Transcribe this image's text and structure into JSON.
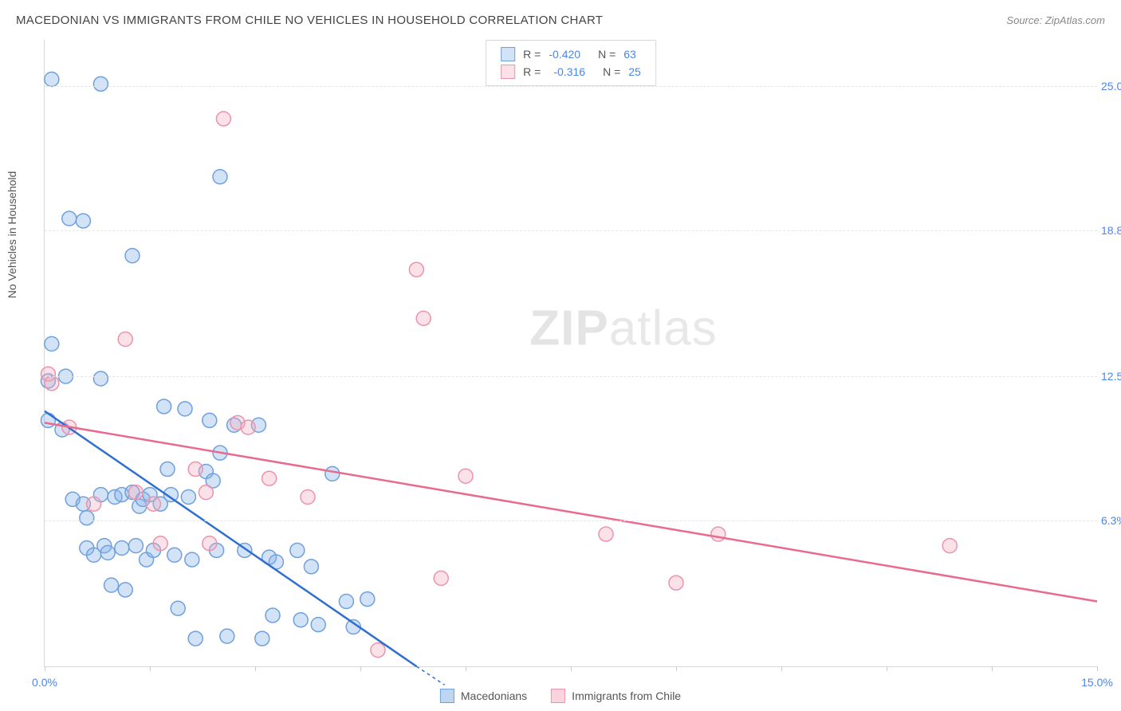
{
  "header": {
    "title": "MACEDONIAN VS IMMIGRANTS FROM CHILE NO VEHICLES IN HOUSEHOLD CORRELATION CHART",
    "source_label": "Source:",
    "source_name": "ZipAtlas.com"
  },
  "chart": {
    "type": "scatter",
    "y_axis_label": "No Vehicles in Household",
    "xlim": [
      0,
      15
    ],
    "ylim": [
      0,
      27
    ],
    "x_ticks": [
      0,
      1.5,
      3.0,
      4.5,
      6.0,
      7.5,
      9.0,
      10.5,
      12.0,
      13.5,
      15.0
    ],
    "x_tick_labels_shown": {
      "0": "0.0%",
      "15": "15.0%"
    },
    "y_ticks": [
      6.3,
      12.5,
      18.8,
      25.0
    ],
    "y_tick_labels": [
      "6.3%",
      "12.5%",
      "18.8%",
      "25.0%"
    ],
    "background_color": "#ffffff",
    "grid_color": "#e6e6e6",
    "axis_color": "#d8d8d8",
    "watermark": {
      "text_bold": "ZIP",
      "text_light": "atlas",
      "color": "#e8e8e8"
    },
    "marker_radius": 9,
    "marker_stroke_width": 1.5,
    "trend_line_width": 2.5,
    "series": [
      {
        "name": "Macedonians",
        "color_fill": "rgba(128,174,232,0.35)",
        "color_stroke": "#6fa0dd",
        "line_color": "#2e6fd0",
        "R": "-0.420",
        "N": "63",
        "trend": {
          "x1": 0,
          "y1": 11.0,
          "x2": 5.3,
          "y2": 0
        },
        "trend_dash_ext": {
          "x1": 5.3,
          "y1": 0,
          "x2": 5.7,
          "y2": -0.8
        },
        "points": [
          [
            0.05,
            12.3
          ],
          [
            0.05,
            10.6
          ],
          [
            0.1,
            25.3
          ],
          [
            0.1,
            13.9
          ],
          [
            0.25,
            10.2
          ],
          [
            0.3,
            12.5
          ],
          [
            0.35,
            19.3
          ],
          [
            0.4,
            7.2
          ],
          [
            0.55,
            19.2
          ],
          [
            0.55,
            7.0
          ],
          [
            0.6,
            6.4
          ],
          [
            0.6,
            5.1
          ],
          [
            0.7,
            4.8
          ],
          [
            0.8,
            25.1
          ],
          [
            0.8,
            12.4
          ],
          [
            0.8,
            7.4
          ],
          [
            0.85,
            5.2
          ],
          [
            0.9,
            4.9
          ],
          [
            0.95,
            3.5
          ],
          [
            1.0,
            7.3
          ],
          [
            1.1,
            7.4
          ],
          [
            1.1,
            5.1
          ],
          [
            1.15,
            3.3
          ],
          [
            1.25,
            17.7
          ],
          [
            1.25,
            7.5
          ],
          [
            1.3,
            5.2
          ],
          [
            1.35,
            6.9
          ],
          [
            1.4,
            7.2
          ],
          [
            1.45,
            4.6
          ],
          [
            1.5,
            7.4
          ],
          [
            1.55,
            5.0
          ],
          [
            1.65,
            7.0
          ],
          [
            1.7,
            11.2
          ],
          [
            1.75,
            8.5
          ],
          [
            1.8,
            7.4
          ],
          [
            1.85,
            4.8
          ],
          [
            1.9,
            2.5
          ],
          [
            2.0,
            11.1
          ],
          [
            2.05,
            7.3
          ],
          [
            2.1,
            4.6
          ],
          [
            2.15,
            1.2
          ],
          [
            2.3,
            8.4
          ],
          [
            2.35,
            10.6
          ],
          [
            2.4,
            8.0
          ],
          [
            2.45,
            5.0
          ],
          [
            2.5,
            21.1
          ],
          [
            2.5,
            9.2
          ],
          [
            2.6,
            1.3
          ],
          [
            2.7,
            10.4
          ],
          [
            2.85,
            5.0
          ],
          [
            3.05,
            10.4
          ],
          [
            3.1,
            1.2
          ],
          [
            3.2,
            4.7
          ],
          [
            3.25,
            2.2
          ],
          [
            3.3,
            4.5
          ],
          [
            3.6,
            5.0
          ],
          [
            3.65,
            2.0
          ],
          [
            3.8,
            4.3
          ],
          [
            3.9,
            1.8
          ],
          [
            4.1,
            8.3
          ],
          [
            4.3,
            2.8
          ],
          [
            4.4,
            1.7
          ],
          [
            4.6,
            2.9
          ]
        ]
      },
      {
        "name": "Immigrants from Chile",
        "color_fill": "rgba(243,170,190,0.35)",
        "color_stroke": "#ea94ac",
        "line_color": "#e86a8e",
        "R": "-0.316",
        "N": "25",
        "trend": {
          "x1": 0,
          "y1": 10.5,
          "x2": 15,
          "y2": 2.8
        },
        "points": [
          [
            0.05,
            12.6
          ],
          [
            0.1,
            12.2
          ],
          [
            0.35,
            10.3
          ],
          [
            0.7,
            7.0
          ],
          [
            1.15,
            14.1
          ],
          [
            1.3,
            7.5
          ],
          [
            1.55,
            7.0
          ],
          [
            1.65,
            5.3
          ],
          [
            2.15,
            8.5
          ],
          [
            2.3,
            7.5
          ],
          [
            2.35,
            5.3
          ],
          [
            2.55,
            23.6
          ],
          [
            2.75,
            10.5
          ],
          [
            2.9,
            10.3
          ],
          [
            3.2,
            8.1
          ],
          [
            3.75,
            7.3
          ],
          [
            4.75,
            0.7
          ],
          [
            5.3,
            17.1
          ],
          [
            5.4,
            15.0
          ],
          [
            5.65,
            3.8
          ],
          [
            6.0,
            8.2
          ],
          [
            8.0,
            5.7
          ],
          [
            9.0,
            3.6
          ],
          [
            9.6,
            5.7
          ],
          [
            12.9,
            5.2
          ]
        ]
      }
    ],
    "bottom_legend": [
      {
        "label": "Macedonians",
        "fill": "rgba(128,174,232,0.5)",
        "stroke": "#6fa0dd"
      },
      {
        "label": "Immigrants from Chile",
        "fill": "rgba(243,170,190,0.5)",
        "stroke": "#ea94ac"
      }
    ]
  }
}
